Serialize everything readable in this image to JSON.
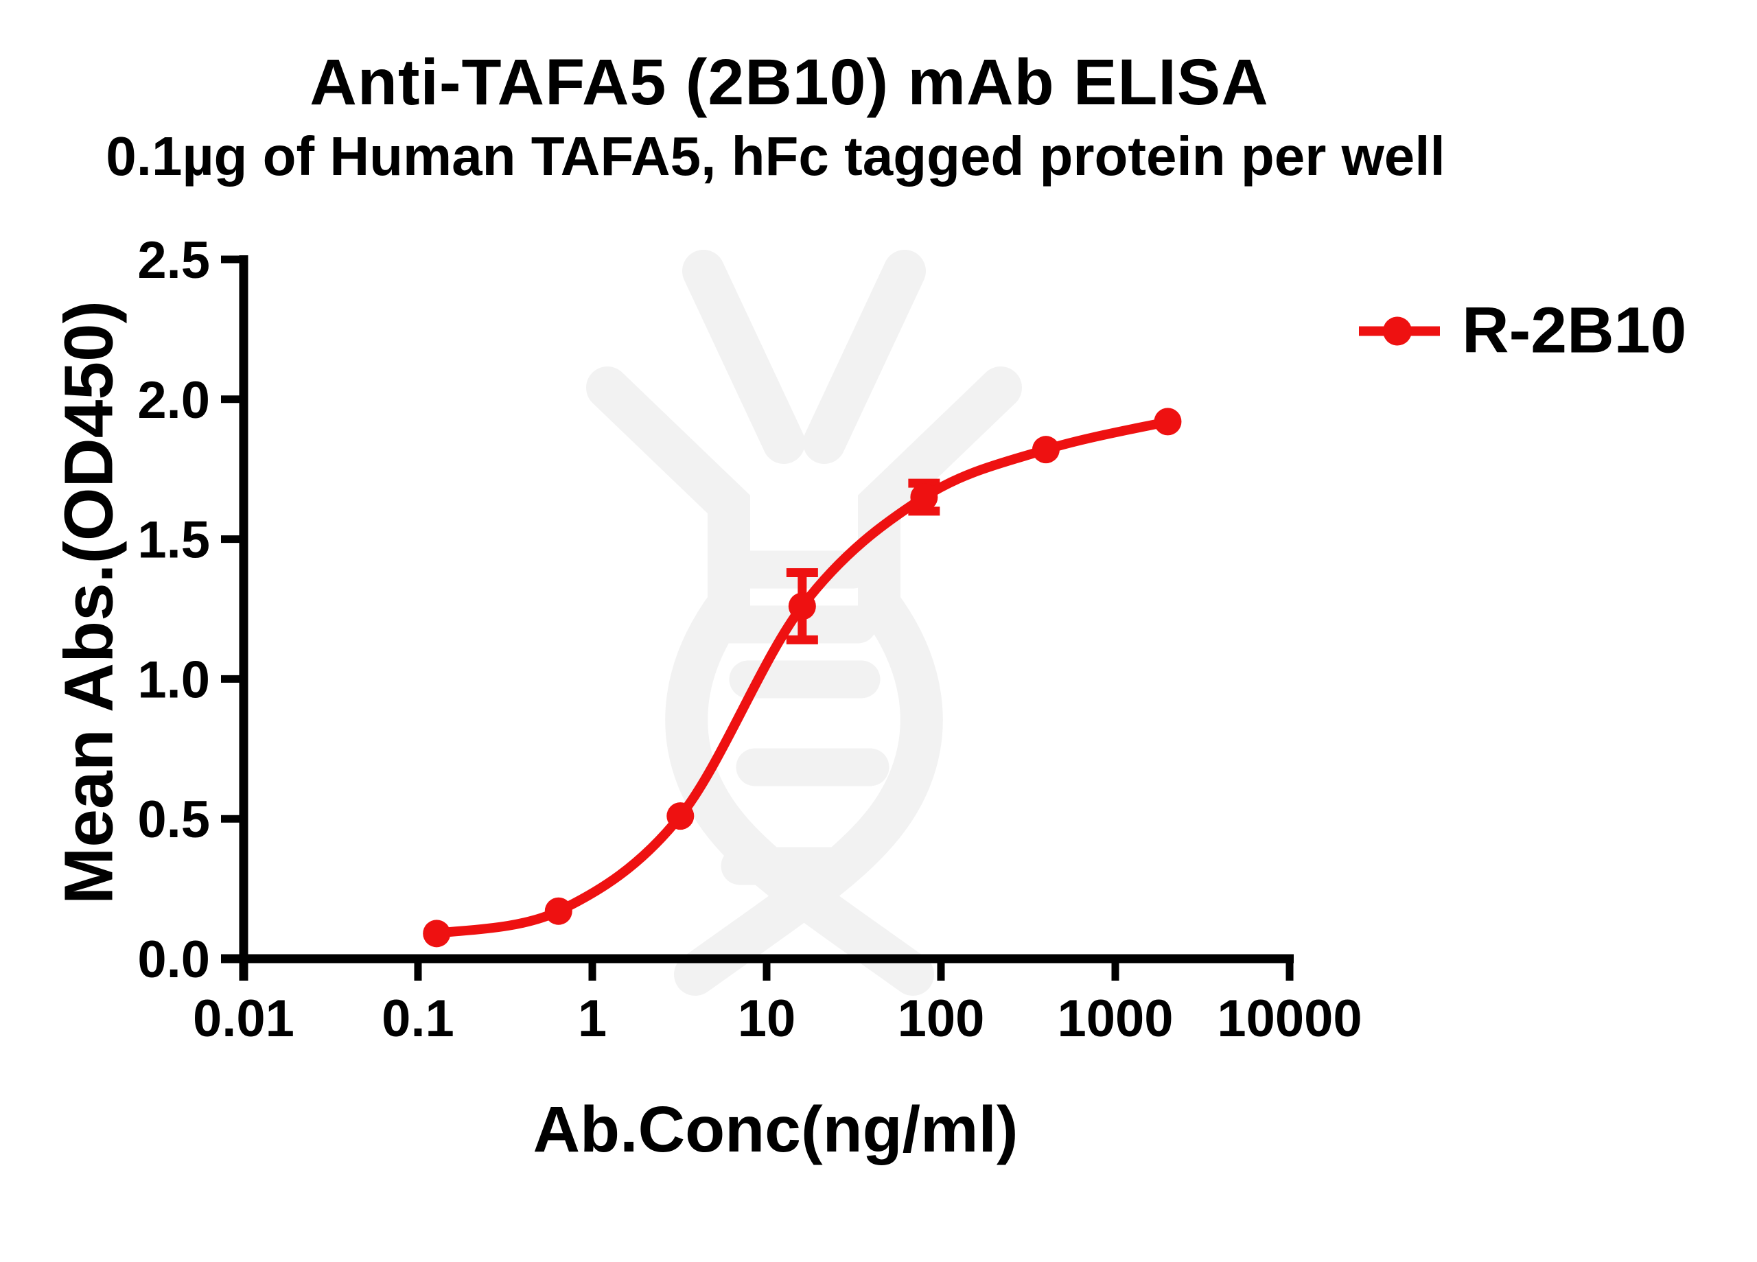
{
  "chart_data": {
    "type": "line",
    "title": "Anti-TAFA5 (2B10) mAb ELISA",
    "subtitle": "0.1µg of Human TAFA5, hFc tagged protein per well",
    "xlabel": "Ab.Conc(ng/ml)",
    "ylabel": "Mean Abs.(OD450)",
    "x_scale": "log10",
    "xlim": [
      0.01,
      10000
    ],
    "ylim": [
      0.0,
      2.5
    ],
    "grid": false,
    "x_tick_labels": [
      "0.01",
      "0.1",
      "1",
      "10",
      "100",
      "1000",
      "10000"
    ],
    "x_tick_values": [
      0.01,
      0.1,
      1,
      10,
      100,
      1000,
      10000
    ],
    "y_tick_labels": [
      "0.0",
      "0.5",
      "1.0",
      "1.5",
      "2.0",
      "2.5"
    ],
    "y_tick_values": [
      0.0,
      0.5,
      1.0,
      1.5,
      2.0,
      2.5
    ],
    "legend_position": "right",
    "axis_color": "#000000",
    "watermark_name": "antibody-dna-logo",
    "watermark_color": "#f2f2f2",
    "series": [
      {
        "name": "R-2B10",
        "color": "#ee1111",
        "marker": "circle",
        "x": [
          0.128,
          0.64,
          3.2,
          16,
          80,
          400,
          2000
        ],
        "y": [
          0.09,
          0.17,
          0.51,
          1.26,
          1.65,
          1.82,
          1.92
        ],
        "y_err": [
          0,
          0,
          0,
          0.12,
          0.05,
          0,
          0
        ]
      }
    ]
  }
}
